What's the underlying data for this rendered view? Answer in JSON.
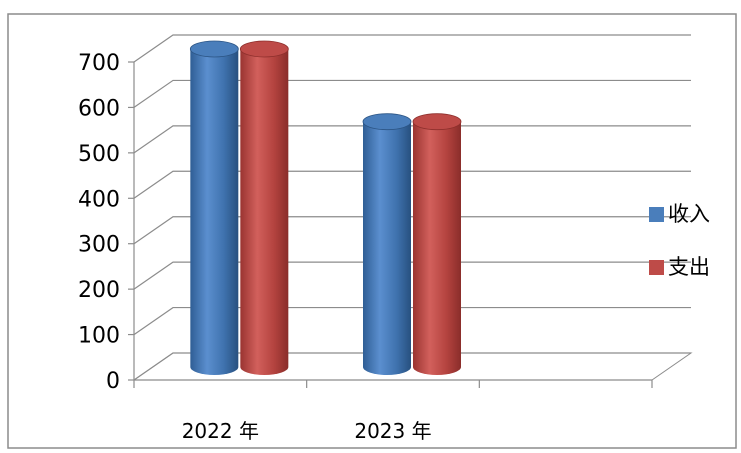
{
  "chart_data": {
    "type": "bar",
    "categories": [
      "2022 年",
      "2023 年"
    ],
    "series": [
      {
        "name": "收入",
        "values": [
          700,
          540
        ],
        "color": "#4a7ebb"
      },
      {
        "name": "支出",
        "values": [
          700,
          540
        ],
        "color": "#be4b48"
      }
    ],
    "ylim": [
      0,
      700
    ],
    "yticks": [
      0,
      100,
      200,
      300,
      400,
      500,
      600,
      700
    ],
    "grid": true,
    "legend": "right",
    "style": "3d-cylinder"
  }
}
